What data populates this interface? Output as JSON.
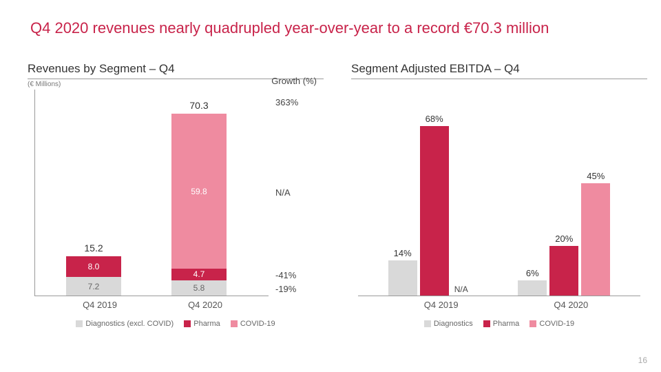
{
  "title": "Q4 2020 revenues nearly quadrupled year-over-year to a record €70.3 million",
  "title_color": "#c8234a",
  "page_number": "16",
  "colors": {
    "diagnostics": "#d9d9d9",
    "pharma": "#c8234a",
    "covid": "#ef8ba0",
    "text_dark": "#333333",
    "text_white": "#ffffff",
    "axis": "#999999"
  },
  "left_chart": {
    "title": "Revenues by Segment – Q4",
    "subtitle": "(€ Millions)",
    "growth_header": "Growth (%)",
    "type": "stacked-bar",
    "ylim": [
      0,
      80
    ],
    "categories": [
      "Q4 2019",
      "Q4 2020"
    ],
    "series": [
      {
        "name": "Diagnostics (excl. COVID)",
        "values": [
          7.2,
          5.8
        ],
        "labels": [
          "7.2",
          "5.8"
        ],
        "color": "#d9d9d9",
        "label_color": "#666666"
      },
      {
        "name": "Pharma",
        "values": [
          8.0,
          4.7
        ],
        "labels": [
          "8.0",
          "4.7"
        ],
        "color": "#c8234a",
        "label_color": "#ffffff"
      },
      {
        "name": "COVID-19",
        "values": [
          0,
          59.8
        ],
        "labels": [
          "",
          "59.8"
        ],
        "color": "#ef8ba0",
        "label_color": "#ffffff"
      }
    ],
    "totals": [
      "15.2",
      "70.3"
    ],
    "growth": [
      {
        "label": "363%",
        "align_to": "total"
      },
      {
        "label": "N/A",
        "align_to": "covid"
      },
      {
        "label": "-41%",
        "align_to": "pharma"
      },
      {
        "label": "-19%",
        "align_to": "diagnostics"
      }
    ],
    "legend": [
      "Diagnostics (excl. COVID)",
      "Pharma",
      "COVID-19"
    ]
  },
  "right_chart": {
    "title": "Segment Adjusted EBITDA – Q4",
    "type": "grouped-bar",
    "ylim": [
      0,
      80
    ],
    "categories": [
      "Q4 2019",
      "Q4 2020"
    ],
    "series": [
      {
        "name": "Diagnostics",
        "color": "#d9d9d9"
      },
      {
        "name": "Pharma",
        "color": "#c8234a"
      },
      {
        "name": "COVID-19",
        "color": "#ef8ba0"
      }
    ],
    "groups": [
      {
        "category": "Q4 2019",
        "bars": [
          {
            "value": 14,
            "label": "14%"
          },
          {
            "value": 68,
            "label": "68%"
          },
          {
            "value": 0,
            "label": "N/A"
          }
        ]
      },
      {
        "category": "Q4 2020",
        "bars": [
          {
            "value": 6,
            "label": "6%"
          },
          {
            "value": 20,
            "label": "20%"
          },
          {
            "value": 45,
            "label": "45%"
          }
        ]
      }
    ],
    "legend": [
      "Diagnostics",
      "Pharma",
      "COVID-19"
    ]
  }
}
